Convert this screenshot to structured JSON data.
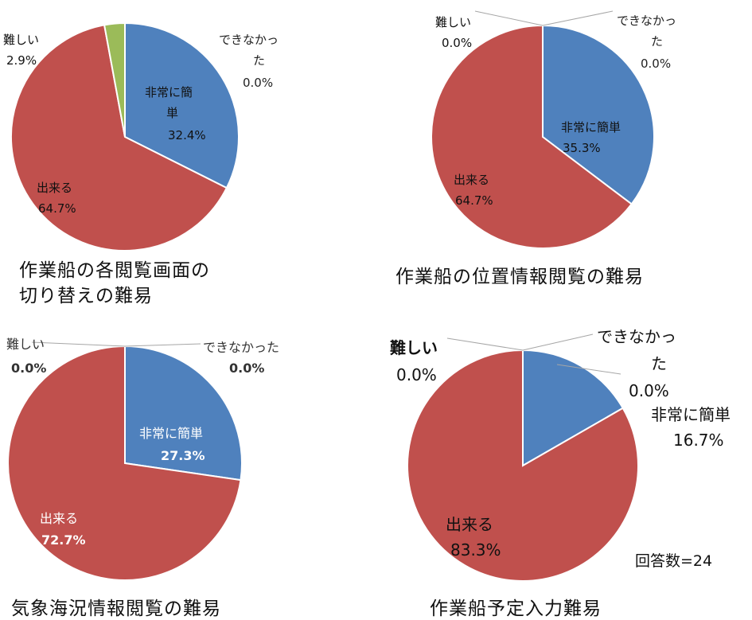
{
  "chart_data": [
    {
      "type": "pie",
      "caption": "作業船の各閲覧画面の\n切り替えの難易",
      "slices": [
        {
          "label": "非常に簡単",
          "pct_text": "32.4%",
          "value": 32.4,
          "color": "#4F81BD"
        },
        {
          "label": "出来る",
          "pct_text": "64.7%",
          "value": 64.7,
          "color": "#C0504D"
        },
        {
          "label": "難しい",
          "pct_text": "2.9%",
          "value": 2.9,
          "color": "#9BBB59"
        },
        {
          "label": "できなかった",
          "pct_text": "0.0%",
          "value": 0.0,
          "color": "#8064A2"
        }
      ]
    },
    {
      "type": "pie",
      "caption": "作業船の位置情報閲覧の難易",
      "slices": [
        {
          "label": "非常に簡単",
          "pct_text": "35.3%",
          "value": 35.3,
          "color": "#4F81BD"
        },
        {
          "label": "出来る",
          "pct_text": "64.7%",
          "value": 64.7,
          "color": "#C0504D"
        },
        {
          "label": "難しい",
          "pct_text": "0.0%",
          "value": 0.0,
          "color": "#9BBB59"
        },
        {
          "label": "できなかった",
          "pct_text": "0.0%",
          "value": 0.0,
          "color": "#8064A2"
        }
      ]
    },
    {
      "type": "pie",
      "caption": "気象海況情報閲覧の難易",
      "slices": [
        {
          "label": "非常に簡単",
          "pct_text": "27.3%",
          "value": 27.3,
          "color": "#4F81BD"
        },
        {
          "label": "出来る",
          "pct_text": "72.7%",
          "value": 72.7,
          "color": "#C0504D"
        },
        {
          "label": "難しい",
          "pct_text": "0.0%",
          "value": 0.0,
          "color": "#9BBB59"
        },
        {
          "label": "できなかった",
          "pct_text": "0.0%",
          "value": 0.0,
          "color": "#8064A2"
        }
      ]
    },
    {
      "type": "pie",
      "caption": "作業船予定入力難易",
      "slices": [
        {
          "label": "非常に簡単",
          "pct_text": "16.7%",
          "value": 16.7,
          "color": "#4F81BD"
        },
        {
          "label": "出来る",
          "pct_text": "83.3%",
          "value": 83.3,
          "color": "#C0504D"
        },
        {
          "label": "難しい",
          "pct_text": "0.0%",
          "value": 0.0,
          "color": "#9BBB59"
        },
        {
          "label": "できなかった",
          "pct_text": "0.0%",
          "value": 0.0,
          "color": "#8064A2"
        }
      ],
      "note": "回答数=24"
    }
  ]
}
